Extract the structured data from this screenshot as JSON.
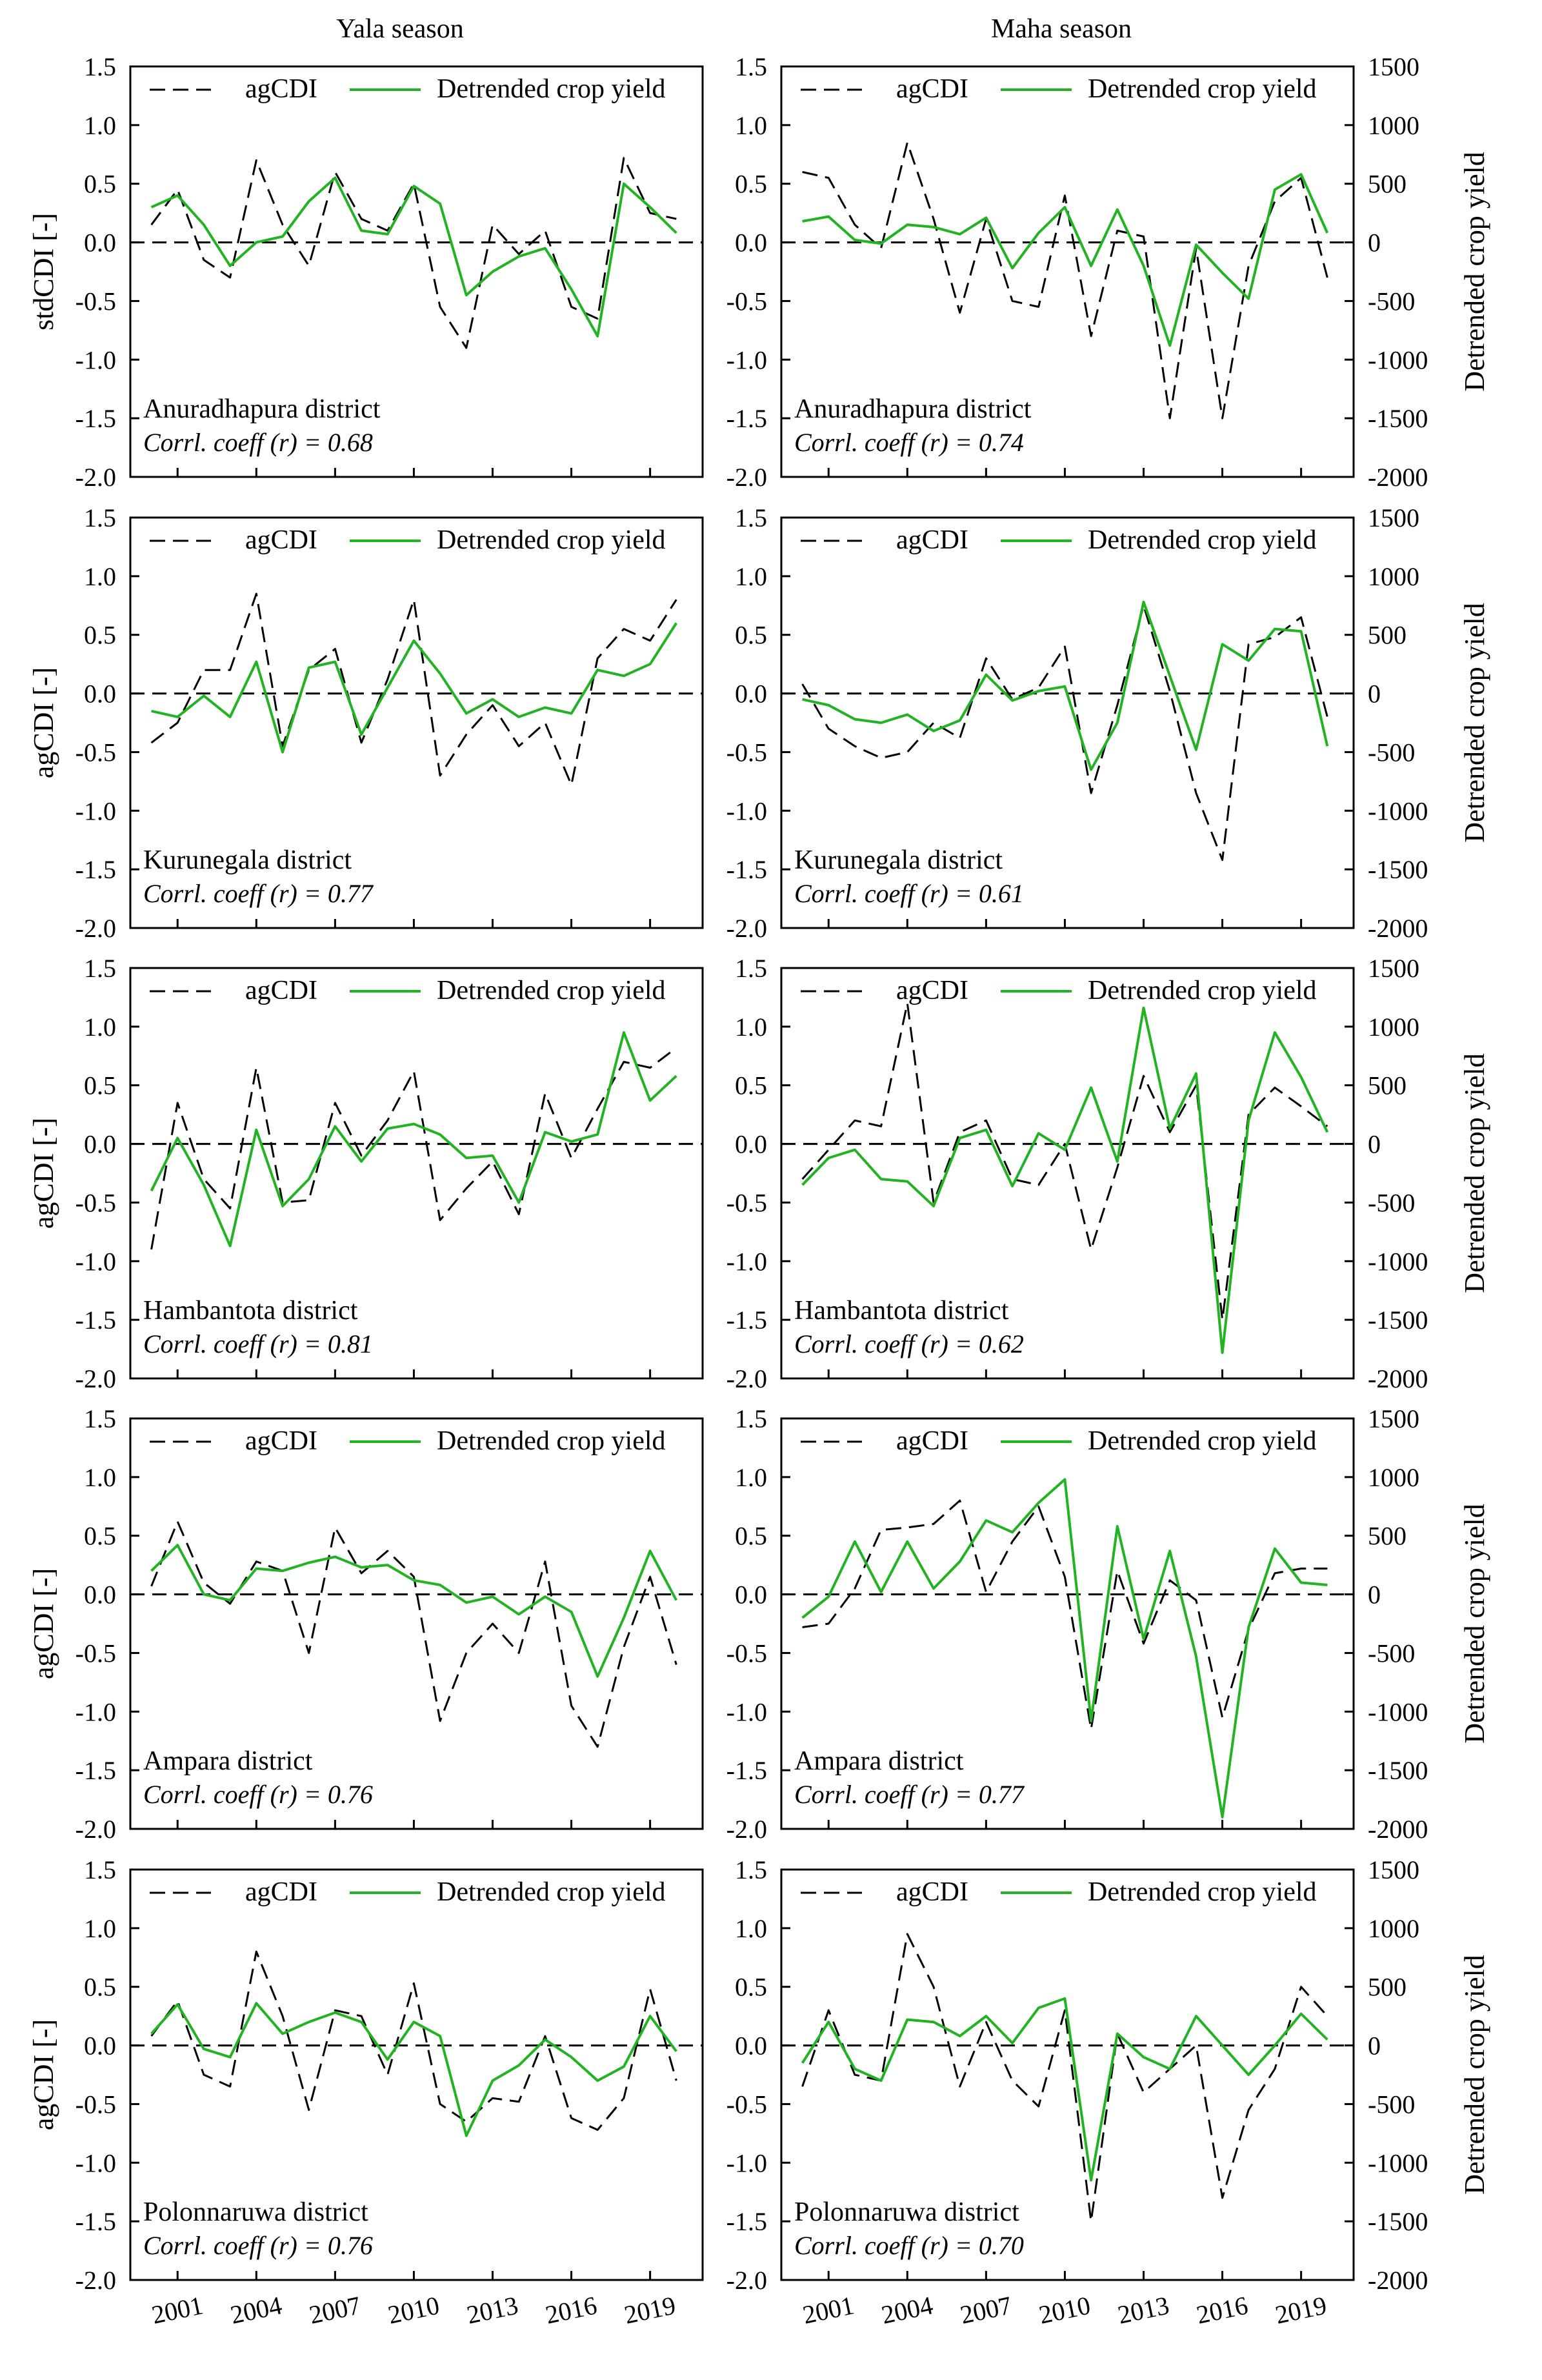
{
  "season_titles": [
    "Yala season",
    "Maha season"
  ],
  "chart_data": [
    {
      "type": "line",
      "title": "Anuradhapura district",
      "season": "Yala season",
      "corr": "Corrl. coeff (r) = 0.68",
      "ylabel": "stdCDI [-]",
      "y2label": "",
      "ylim": [
        -2.0,
        1.5
      ],
      "y2lim": null,
      "x": [
        2000,
        2001,
        2002,
        2003,
        2004,
        2005,
        2006,
        2007,
        2008,
        2009,
        2010,
        2011,
        2012,
        2013,
        2014,
        2015,
        2016,
        2017,
        2018,
        2019,
        2020
      ],
      "series": [
        {
          "name": "agCDI",
          "axis": "left",
          "values": [
            0.15,
            0.45,
            -0.15,
            -0.3,
            0.7,
            0.15,
            -0.2,
            0.6,
            0.2,
            0.1,
            0.5,
            -0.55,
            -0.9,
            0.15,
            -0.1,
            0.1,
            -0.55,
            -0.65,
            0.72,
            0.25,
            0.2
          ]
        },
        {
          "name": "Detrended crop yield",
          "axis": "left",
          "values": [
            0.3,
            0.4,
            0.15,
            -0.2,
            0.0,
            0.05,
            0.35,
            0.55,
            0.1,
            0.07,
            0.48,
            0.33,
            -0.45,
            -0.25,
            -0.12,
            -0.05,
            -0.4,
            -0.8,
            0.5,
            0.3,
            0.08
          ]
        }
      ]
    },
    {
      "type": "line",
      "title": "Anuradhapura district",
      "season": "Maha season",
      "corr": "Corrl. coeff (r) = 0.74",
      "ylabel": "",
      "y2label": "Detrended crop yield",
      "ylim": [
        -2.0,
        1.5
      ],
      "y2lim": [
        -2000,
        1500
      ],
      "x": [
        2000,
        2001,
        2002,
        2003,
        2004,
        2005,
        2006,
        2007,
        2008,
        2009,
        2010,
        2011,
        2012,
        2013,
        2014,
        2015,
        2016,
        2017,
        2018,
        2019,
        2020
      ],
      "series": [
        {
          "name": "agCDI",
          "axis": "left",
          "values": [
            0.6,
            0.55,
            0.15,
            -0.05,
            0.85,
            0.2,
            -0.6,
            0.2,
            -0.5,
            -0.55,
            0.4,
            -0.8,
            0.1,
            0.05,
            -1.5,
            -0.05,
            -1.5,
            -0.2,
            0.35,
            0.55,
            -0.3
          ]
        },
        {
          "name": "Detrended crop yield",
          "axis": "right",
          "values": [
            180,
            220,
            20,
            -10,
            150,
            130,
            70,
            210,
            -220,
            80,
            300,
            -200,
            280,
            -200,
            -880,
            -20,
            -260,
            -480,
            450,
            580,
            80
          ]
        }
      ]
    },
    {
      "type": "line",
      "title": "Kurunegala district",
      "season": "Yala season",
      "corr": "Corrl. coeff (r) = 0.77",
      "ylabel": "agCDI [-]",
      "y2label": "",
      "ylim": [
        -2.0,
        1.5
      ],
      "y2lim": null,
      "x": [
        2000,
        2001,
        2002,
        2003,
        2004,
        2005,
        2006,
        2007,
        2008,
        2009,
        2010,
        2011,
        2012,
        2013,
        2014,
        2015,
        2016,
        2017,
        2018,
        2019,
        2020
      ],
      "series": [
        {
          "name": "agCDI",
          "axis": "left",
          "values": [
            -0.42,
            -0.25,
            0.2,
            0.2,
            0.85,
            -0.45,
            0.2,
            0.38,
            -0.42,
            0.12,
            0.8,
            -0.7,
            -0.35,
            -0.1,
            -0.45,
            -0.25,
            -0.78,
            0.3,
            0.55,
            0.45,
            0.8
          ]
        },
        {
          "name": "Detrended crop yield",
          "axis": "left",
          "values": [
            -0.15,
            -0.2,
            -0.02,
            -0.2,
            0.27,
            -0.5,
            0.22,
            0.27,
            -0.35,
            0.05,
            0.45,
            0.17,
            -0.17,
            -0.05,
            -0.2,
            -0.12,
            -0.17,
            0.2,
            0.15,
            0.25,
            0.6
          ]
        }
      ]
    },
    {
      "type": "line",
      "title": "Kurunegala district",
      "season": "Maha season",
      "corr": "Corrl. coeff (r) = 0.61",
      "ylabel": "",
      "y2label": "Detrended crop yield",
      "ylim": [
        -2.0,
        1.5
      ],
      "y2lim": [
        -2000,
        1500
      ],
      "x": [
        2000,
        2001,
        2002,
        2003,
        2004,
        2005,
        2006,
        2007,
        2008,
        2009,
        2010,
        2011,
        2012,
        2013,
        2014,
        2015,
        2016,
        2017,
        2018,
        2019,
        2020
      ],
      "series": [
        {
          "name": "agCDI",
          "axis": "left",
          "values": [
            0.08,
            -0.3,
            -0.45,
            -0.55,
            -0.5,
            -0.25,
            -0.38,
            0.3,
            -0.05,
            0.05,
            0.4,
            -0.85,
            -0.1,
            0.75,
            0.02,
            -0.85,
            -1.42,
            0.42,
            0.48,
            0.65,
            -0.2
          ]
        },
        {
          "name": "Detrended crop yield",
          "axis": "right",
          "values": [
            -50,
            -100,
            -220,
            -250,
            -180,
            -320,
            -230,
            160,
            -60,
            20,
            60,
            -650,
            -250,
            780,
            150,
            -480,
            420,
            280,
            550,
            530,
            -450
          ]
        }
      ]
    },
    {
      "type": "line",
      "title": "Hambantota district",
      "season": "Yala season",
      "corr": "Corrl. coeff (r) = 0.81",
      "ylabel": "agCDI [-]",
      "y2label": "",
      "ylim": [
        -2.0,
        1.5
      ],
      "y2lim": null,
      "x": [
        2000,
        2001,
        2002,
        2003,
        2004,
        2005,
        2006,
        2007,
        2008,
        2009,
        2010,
        2011,
        2012,
        2013,
        2014,
        2015,
        2016,
        2017,
        2018,
        2019,
        2020
      ],
      "series": [
        {
          "name": "agCDI",
          "axis": "left",
          "values": [
            -0.9,
            0.35,
            -0.3,
            -0.55,
            0.65,
            -0.5,
            -0.48,
            0.35,
            -0.1,
            0.2,
            0.62,
            -0.65,
            -0.38,
            -0.15,
            -0.6,
            0.43,
            -0.12,
            0.3,
            0.7,
            0.65,
            0.82
          ]
        },
        {
          "name": "Detrended crop yield",
          "axis": "left",
          "values": [
            -0.4,
            0.05,
            -0.35,
            -0.87,
            0.12,
            -0.53,
            -0.3,
            0.15,
            -0.15,
            0.13,
            0.17,
            0.08,
            -0.12,
            -0.1,
            -0.5,
            0.1,
            0.02,
            0.08,
            0.95,
            0.37,
            0.58
          ]
        }
      ]
    },
    {
      "type": "line",
      "title": "Hambantota district",
      "season": "Maha season",
      "corr": "Corrl. coeff (r) = 0.62",
      "ylabel": "",
      "y2label": "Detrended crop yield",
      "ylim": [
        -2.0,
        1.5
      ],
      "y2lim": [
        -2000,
        1500
      ],
      "x": [
        2000,
        2001,
        2002,
        2003,
        2004,
        2005,
        2006,
        2007,
        2008,
        2009,
        2010,
        2011,
        2012,
        2013,
        2014,
        2015,
        2016,
        2017,
        2018,
        2019,
        2020
      ],
      "series": [
        {
          "name": "agCDI",
          "axis": "left",
          "values": [
            -0.3,
            -0.05,
            0.2,
            0.15,
            1.2,
            -0.5,
            0.1,
            0.2,
            -0.3,
            -0.35,
            0.0,
            -0.9,
            -0.2,
            0.58,
            0.1,
            0.5,
            -1.5,
            0.25,
            0.48,
            0.32,
            0.15
          ]
        },
        {
          "name": "Detrended crop yield",
          "axis": "right",
          "values": [
            -350,
            -120,
            -50,
            -300,
            -320,
            -530,
            50,
            120,
            -360,
            90,
            -50,
            480,
            -150,
            1160,
            130,
            600,
            -1780,
            200,
            950,
            570,
            100
          ]
        }
      ]
    },
    {
      "type": "line",
      "title": "Ampara district",
      "season": "Yala season",
      "corr": "Corrl. coeff (r) = 0.76",
      "ylabel": "agCDI [-]",
      "y2label": "",
      "ylim": [
        -2.0,
        1.5
      ],
      "y2lim": null,
      "x": [
        2000,
        2001,
        2002,
        2003,
        2004,
        2005,
        2006,
        2007,
        2008,
        2009,
        2010,
        2011,
        2012,
        2013,
        2014,
        2015,
        2016,
        2017,
        2018,
        2019,
        2020
      ],
      "series": [
        {
          "name": "agCDI",
          "axis": "left",
          "values": [
            0.07,
            0.62,
            0.1,
            -0.08,
            0.28,
            0.2,
            -0.5,
            0.57,
            0.18,
            0.37,
            0.15,
            -1.08,
            -0.5,
            -0.25,
            -0.5,
            0.28,
            -0.95,
            -1.3,
            -0.45,
            0.15,
            -0.6
          ]
        },
        {
          "name": "Detrended crop yield",
          "axis": "left",
          "values": [
            0.2,
            0.42,
            0.0,
            -0.05,
            0.22,
            0.2,
            0.27,
            0.32,
            0.23,
            0.25,
            0.12,
            0.08,
            -0.07,
            -0.02,
            -0.17,
            -0.02,
            -0.15,
            -0.7,
            -0.2,
            0.37,
            -0.05
          ]
        }
      ]
    },
    {
      "type": "line",
      "title": "Ampara district",
      "season": "Maha season",
      "corr": "Corrl. coeff (r) = 0.77",
      "ylabel": "",
      "y2label": "Detrended crop yield",
      "ylim": [
        -2.0,
        1.5
      ],
      "y2lim": [
        -2000,
        1500
      ],
      "x": [
        2000,
        2001,
        2002,
        2003,
        2004,
        2005,
        2006,
        2007,
        2008,
        2009,
        2010,
        2011,
        2012,
        2013,
        2014,
        2015,
        2016,
        2017,
        2018,
        2019,
        2020
      ],
      "series": [
        {
          "name": "agCDI",
          "axis": "left",
          "values": [
            -0.28,
            -0.25,
            0.05,
            0.55,
            0.57,
            0.6,
            0.8,
            0.02,
            0.45,
            0.75,
            0.15,
            -1.15,
            0.2,
            -0.42,
            0.12,
            -0.05,
            -1.05,
            -0.3,
            0.18,
            0.22,
            0.22
          ]
        },
        {
          "name": "Detrended crop yield",
          "axis": "right",
          "values": [
            -200,
            -20,
            450,
            20,
            450,
            50,
            280,
            630,
            530,
            780,
            980,
            -1080,
            580,
            -380,
            370,
            -530,
            -1900,
            -280,
            390,
            100,
            80
          ]
        }
      ]
    },
    {
      "type": "line",
      "title": "Polonnaruwa district",
      "season": "Yala season",
      "corr": "Corrl. coeff (r) = 0.76",
      "ylabel": "agCDI [-]",
      "y2label": "",
      "ylim": [
        -2.0,
        1.5
      ],
      "y2lim": null,
      "x": [
        2000,
        2001,
        2002,
        2003,
        2004,
        2005,
        2006,
        2007,
        2008,
        2009,
        2010,
        2011,
        2012,
        2013,
        2014,
        2015,
        2016,
        2017,
        2018,
        2019,
        2020
      ],
      "series": [
        {
          "name": "agCDI",
          "axis": "left",
          "values": [
            0.08,
            0.38,
            -0.25,
            -0.35,
            0.8,
            0.25,
            -0.55,
            0.3,
            0.25,
            -0.25,
            0.53,
            -0.5,
            -0.65,
            -0.45,
            -0.48,
            0.08,
            -0.62,
            -0.72,
            -0.45,
            0.48,
            -0.3
          ]
        },
        {
          "name": "Detrended crop yield",
          "axis": "left",
          "values": [
            0.1,
            0.35,
            -0.03,
            -0.1,
            0.36,
            0.1,
            0.2,
            0.28,
            0.2,
            -0.12,
            0.2,
            0.08,
            -0.77,
            -0.3,
            -0.17,
            0.05,
            -0.1,
            -0.3,
            -0.18,
            0.25,
            -0.05
          ]
        }
      ]
    },
    {
      "type": "line",
      "title": "Polonnaruwa district",
      "season": "Maha season",
      "corr": "Corrl. coeff (r) = 0.70",
      "ylabel": "",
      "y2label": "Detrended crop yield",
      "ylim": [
        -2.0,
        1.5
      ],
      "y2lim": [
        -2000,
        1500
      ],
      "x": [
        2000,
        2001,
        2002,
        2003,
        2004,
        2005,
        2006,
        2007,
        2008,
        2009,
        2010,
        2011,
        2012,
        2013,
        2014,
        2015,
        2016,
        2017,
        2018,
        2019,
        2020
      ],
      "series": [
        {
          "name": "agCDI",
          "axis": "left",
          "values": [
            -0.35,
            0.3,
            -0.25,
            -0.3,
            0.95,
            0.5,
            -0.35,
            0.2,
            -0.3,
            -0.52,
            0.3,
            -1.5,
            0.1,
            -0.4,
            -0.2,
            0.0,
            -1.3,
            -0.55,
            -0.2,
            0.5,
            0.25
          ]
        },
        {
          "name": "Detrended crop yield",
          "axis": "right",
          "values": [
            -150,
            200,
            -200,
            -300,
            220,
            200,
            80,
            250,
            20,
            320,
            400,
            -1150,
            100,
            -100,
            -200,
            250,
            0,
            -250,
            0,
            270,
            50
          ]
        }
      ]
    }
  ],
  "x_tick_labels": [
    "2001",
    "2004",
    "2007",
    "2010",
    "2013",
    "2016",
    "2019"
  ],
  "left_tick_labels": [
    "1.5",
    "1.0",
    "0.5",
    "0.0",
    "-0.5",
    "-1.0",
    "-1.5",
    "-2.0"
  ],
  "right_tick_labels": [
    "1500",
    "1000",
    "500",
    "0",
    "-500",
    "-1000",
    "-1500",
    "-2000"
  ],
  "legend": {
    "agcdi": "agCDI",
    "yield": "Detrended crop yield"
  },
  "colors": {
    "agcdi": "#000000",
    "yield": "#22b322",
    "zero_line": "#000000",
    "axes": "#000000"
  }
}
